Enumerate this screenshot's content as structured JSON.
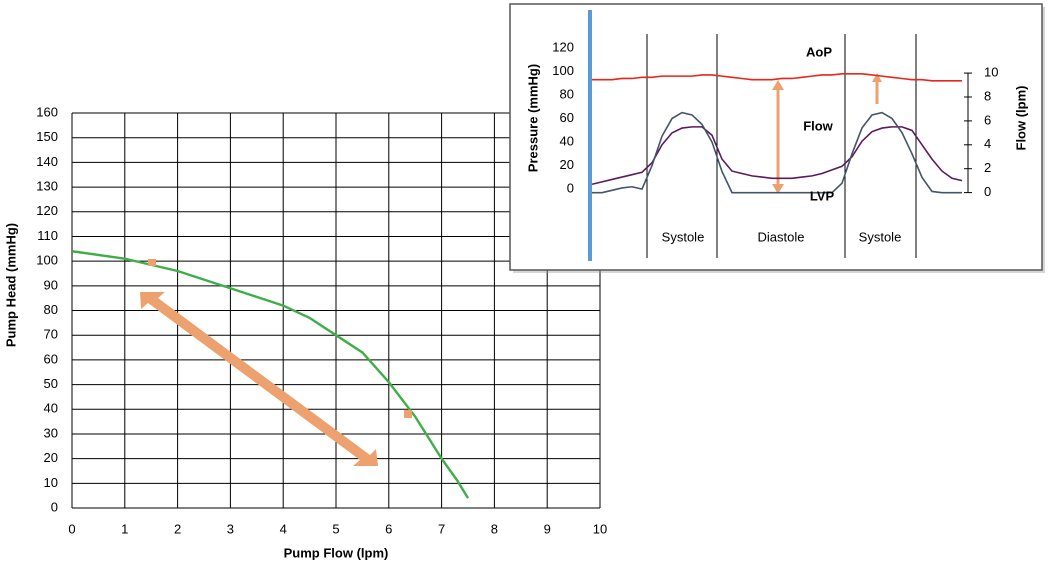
{
  "chart_data": [
    {
      "type": "line",
      "x_label": "Pump Flow (lpm)",
      "y_label": "Pump Head (mmHg)",
      "x": [
        0,
        1,
        2,
        3,
        4,
        4.5,
        5,
        5.5,
        6,
        6.5,
        7,
        7.3,
        7.5
      ],
      "series": [
        {
          "color": "#3fae49",
          "values": [
            104,
            101,
            96,
            89,
            82,
            77,
            70,
            63,
            51,
            37,
            20,
            11,
            4
          ]
        }
      ],
      "xlim": [
        0,
        10
      ],
      "xticks": [
        0,
        1,
        2,
        3,
        4,
        5,
        6,
        7,
        8,
        9,
        10
      ],
      "ylim": [
        0,
        160
      ],
      "yticks": [
        0,
        10,
        20,
        30,
        40,
        50,
        60,
        70,
        80,
        90,
        100,
        110,
        120,
        130,
        140,
        150,
        160
      ],
      "grid": true
    },
    {
      "type": "line",
      "y_label": "Pressure (mmHg)",
      "y2_label": "Flow (lpm)",
      "phases": [
        "Systole",
        "Diastole",
        "Systole"
      ],
      "x": [
        0,
        1,
        2,
        3,
        4,
        5,
        6,
        7,
        8,
        9,
        10,
        11,
        12,
        13,
        14,
        15,
        16,
        17,
        18,
        19,
        20,
        21,
        22,
        23,
        24,
        25,
        26,
        27,
        28,
        29,
        30,
        31,
        32,
        33,
        34,
        35,
        36,
        37
      ],
      "xlim": [
        0,
        37
      ],
      "series": [
        {
          "name": "AoP",
          "color": "#e8261c",
          "label_color": "#e8261c",
          "values": [
            93,
            93,
            93,
            94,
            94,
            95,
            95,
            96,
            96,
            96,
            96,
            97,
            97,
            96,
            95,
            94,
            93,
            93,
            93,
            94,
            94,
            95,
            96,
            97,
            97,
            98,
            98,
            98,
            97,
            96,
            95,
            94,
            93,
            93,
            92,
            92,
            92,
            92
          ]
        },
        {
          "name": "Flow",
          "color": "#5b1a5e",
          "label_color": "#44546a",
          "axis": "y2",
          "values": [
            0.7,
            0.9,
            1.1,
            1.3,
            1.5,
            1.7,
            2.5,
            4.0,
            5.0,
            5.4,
            5.5,
            5.5,
            4.8,
            2.8,
            1.8,
            1.6,
            1.4,
            1.3,
            1.2,
            1.2,
            1.2,
            1.3,
            1.4,
            1.6,
            1.9,
            2.2,
            3.0,
            4.3,
            5.1,
            5.4,
            5.5,
            5.5,
            5.2,
            4.0,
            2.8,
            1.8,
            1.2,
            1.0
          ]
        },
        {
          "name": "LVP",
          "color": "#44546a",
          "label_color": "#44546a",
          "values": [
            -3,
            -3,
            -1,
            1,
            2,
            0,
            20,
            45,
            60,
            65,
            63,
            55,
            40,
            15,
            -3,
            -3,
            -3,
            -3,
            -3,
            -3,
            -3,
            -3,
            -3,
            -3,
            -3,
            5,
            30,
            52,
            63,
            65,
            60,
            48,
            30,
            10,
            -2,
            -3,
            -3,
            -3
          ]
        }
      ],
      "ylim": [
        -5,
        125
      ],
      "yticks": [
        0,
        20,
        40,
        60,
        80,
        100,
        120
      ],
      "y2lim": [
        -0.2,
        12.6
      ],
      "y2ticks": [
        0,
        2,
        4,
        6,
        8,
        10
      ]
    }
  ]
}
